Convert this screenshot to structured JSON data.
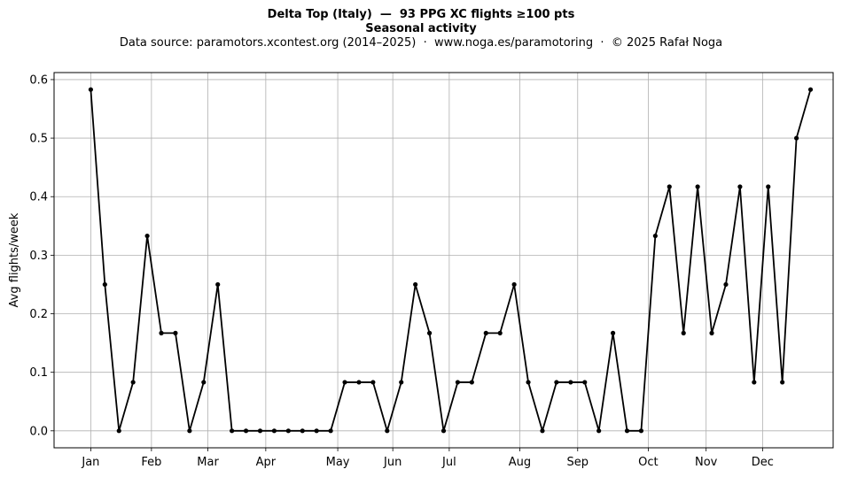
{
  "chart_data": {
    "type": "line",
    "title": "Delta Top (Italy)  —  93 PPG XC flights ≥100 pts",
    "title2": "Seasonal activity",
    "subtitle": "Data source: paramotors.xcontest.org (2014–2025)  ·  www.noga.es/paramotoring  ·  © 2025 Rafał Noga",
    "xlabel": "",
    "ylabel": "Avg flights/week",
    "x_ticks": [
      {
        "label": "Jan",
        "week": 1
      },
      {
        "label": "Feb",
        "week": 5.3
      },
      {
        "label": "Mar",
        "week": 9.3
      },
      {
        "label": "Apr",
        "week": 13.4
      },
      {
        "label": "May",
        "week": 18.5
      },
      {
        "label": "Jun",
        "week": 22.4
      },
      {
        "label": "Jul",
        "week": 26.4
      },
      {
        "label": "Aug",
        "week": 31.4
      },
      {
        "label": "Sep",
        "week": 35.5
      },
      {
        "label": "Oct",
        "week": 40.5
      },
      {
        "label": "Nov",
        "week": 44.6
      },
      {
        "label": "Dec",
        "week": 48.6
      }
    ],
    "y_ticks": [
      0.0,
      0.1,
      0.2,
      0.3,
      0.4,
      0.5,
      0.6
    ],
    "ylim": [
      -0.029,
      0.612
    ],
    "xlim": [
      -1.6,
      53.6
    ],
    "grid": true,
    "series": [
      {
        "color": "#000000",
        "x": [
          1,
          2,
          3,
          4,
          5,
          6,
          7,
          8,
          9,
          10,
          11,
          12,
          13,
          14,
          15,
          16,
          17,
          18,
          19,
          20,
          21,
          22,
          23,
          24,
          25,
          26,
          27,
          28,
          29,
          30,
          31,
          32,
          33,
          34,
          35,
          36,
          37,
          38,
          39,
          40,
          41,
          42,
          43,
          44,
          45,
          46,
          47,
          48,
          49,
          50,
          51,
          52
        ],
        "y": [
          0.583,
          0.25,
          0.0,
          0.083,
          0.333,
          0.167,
          0.167,
          0.0,
          0.083,
          0.25,
          0.0,
          0.0,
          0.0,
          0.0,
          0.0,
          0.0,
          0.0,
          0.0,
          0.083,
          0.083,
          0.083,
          0.0,
          0.083,
          0.25,
          0.167,
          0.0,
          0.083,
          0.083,
          0.167,
          0.167,
          0.25,
          0.083,
          0.0,
          0.083,
          0.083,
          0.083,
          0.0,
          0.167,
          0.0,
          0.0,
          0.333,
          0.417,
          0.167,
          0.417,
          0.167,
          0.25,
          0.417,
          0.083,
          0.417,
          0.083,
          0.5,
          0.583
        ]
      }
    ]
  }
}
